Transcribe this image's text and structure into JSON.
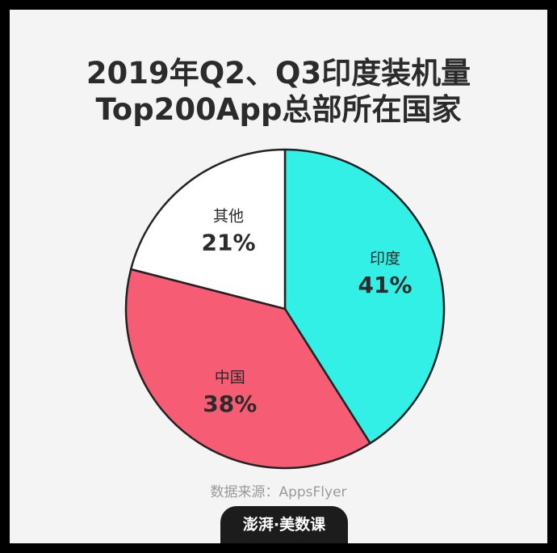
{
  "title_line1": "2019年Q2、Q3印度装机量",
  "title_line2": "Top200App总部所在国家",
  "source": "数据来源：AppsFlyer",
  "brand": "澎湃·美数课",
  "colors": {
    "background": "#f4f4f4",
    "frame": "#000000",
    "india": "#33f0e6",
    "china": "#f65c74",
    "other": "#ffffff",
    "outline": "#222222"
  },
  "chart_data": {
    "type": "pie",
    "title": "2019年Q2、Q3印度装机量 Top200App总部所在国家",
    "slices": [
      {
        "label": "印度",
        "value": 41,
        "display": "41%",
        "color": "#33f0e6"
      },
      {
        "label": "中国",
        "value": 38,
        "display": "38%",
        "color": "#f65c74"
      },
      {
        "label": "其他",
        "value": 21,
        "display": "21%",
        "color": "#ffffff"
      }
    ],
    "start_angle": "12 o'clock",
    "direction": "clockwise"
  }
}
